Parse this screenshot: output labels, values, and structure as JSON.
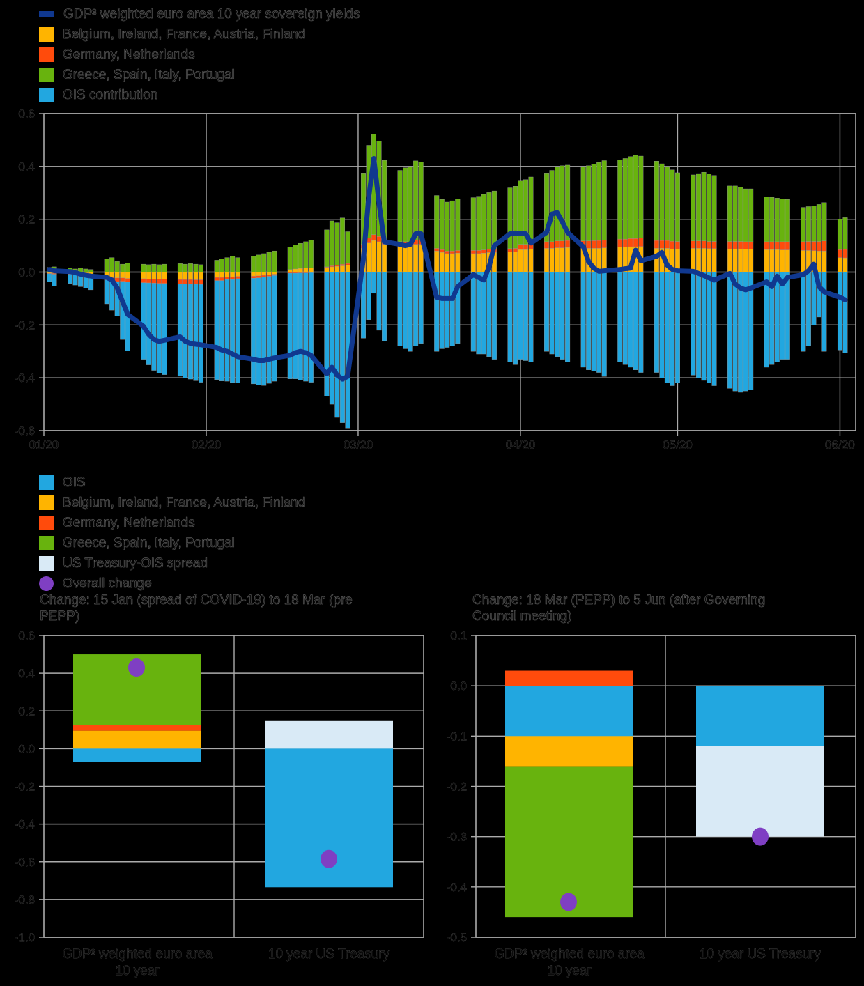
{
  "colors": {
    "background": "#000000",
    "grid": "#ababab",
    "bar_outline": "#9b9b9b",
    "navy": "#10388f",
    "ois": "#22a7e0",
    "befr": "#ffb400",
    "denl": "#ff4b0c",
    "gisp": "#68b30e",
    "ust": "#d9eaf6",
    "purple": "#7f3fc3"
  },
  "top_legend": [
    {
      "key": "navy",
      "swatch": "line",
      "label": "GDP³ weighted euro area 10 year sovereign yields"
    },
    {
      "key": "befr",
      "swatch": "square",
      "label": "Belgium, Ireland, France, Austria, Finland"
    },
    {
      "key": "denl",
      "swatch": "square",
      "label": "Germany, Netherlands"
    },
    {
      "key": "gisp",
      "swatch": "square",
      "label": "Greece, Spain, Italy, Portugal"
    },
    {
      "key": "ois",
      "swatch": "square",
      "label": "OIS contribution"
    }
  ],
  "bottom_legend": [
    {
      "key": "ois",
      "swatch": "square",
      "label": "OIS"
    },
    {
      "key": "befr",
      "swatch": "square",
      "label": "Belgium, Ireland, France, Austria, Finland"
    },
    {
      "key": "denl",
      "swatch": "square",
      "label": "Germany, Netherlands"
    },
    {
      "key": "gisp",
      "swatch": "square",
      "label": "Greece, Spain, Italy, Portugal"
    },
    {
      "key": "ust",
      "swatch": "square",
      "label": "US Treasury-OIS spread"
    },
    {
      "key": "purple",
      "swatch": "circle",
      "label": "Overall change"
    }
  ],
  "chart_data": [
    {
      "id": "top",
      "type": "bar+line",
      "stacked": true,
      "description": "Daily decomposition of changes in the GDP-weighted euro area 10 year sovereign yield, Jan-Jun 2020",
      "ylim": [
        -0.6,
        0.6
      ],
      "y_tick_values": [
        0.6,
        0.4,
        0.2,
        0.0,
        -0.2,
        -0.4,
        -0.6
      ],
      "y_tick_labels": [
        "0.6",
        "0.4",
        "0.2",
        "0.0",
        "-0.2",
        "-0.4",
        "-0.6"
      ],
      "x_ticks": [
        {
          "label": "01/20",
          "day": 0
        },
        {
          "label": "02/20",
          "day": 31
        },
        {
          "label": "03/20",
          "day": 60
        },
        {
          "label": "04/20",
          "day": 91
        },
        {
          "label": "05/20",
          "day": 121
        },
        {
          "label": "06/20",
          "day": 152
        }
      ],
      "day_range": [
        0,
        155
      ],
      "days": [
        1,
        2,
        5,
        6,
        7,
        8,
        9,
        12,
        13,
        14,
        15,
        16,
        19,
        20,
        21,
        22,
        23,
        26,
        27,
        28,
        29,
        30,
        33,
        34,
        35,
        36,
        37,
        40,
        41,
        42,
        43,
        44,
        47,
        48,
        49,
        50,
        51,
        54,
        55,
        56,
        57,
        58,
        61,
        62,
        63,
        64,
        65,
        68,
        69,
        70,
        71,
        72,
        75,
        76,
        77,
        78,
        79,
        82,
        83,
        84,
        85,
        86,
        89,
        90,
        91,
        92,
        93,
        96,
        97,
        98,
        99,
        100,
        103,
        104,
        105,
        106,
        107,
        110,
        111,
        112,
        113,
        114,
        117,
        118,
        119,
        120,
        121,
        124,
        125,
        126,
        127,
        128,
        131,
        132,
        133,
        134,
        135,
        138,
        139,
        140,
        141,
        142,
        145,
        146,
        147,
        148,
        149,
        152,
        153
      ],
      "series": [
        {
          "name": "OIS contribution",
          "key": "ois",
          "type": "bar",
          "values": [
            -0.03,
            -0.045,
            -0.035,
            -0.04,
            -0.045,
            -0.05,
            -0.055,
            -0.09,
            -0.11,
            -0.13,
            -0.22,
            -0.26,
            -0.29,
            -0.31,
            -0.33,
            -0.34,
            -0.345,
            -0.35,
            -0.355,
            -0.36,
            -0.365,
            -0.37,
            -0.375,
            -0.38,
            -0.385,
            -0.39,
            -0.395,
            -0.4,
            -0.405,
            -0.41,
            -0.405,
            -0.4,
            -0.4,
            -0.4,
            -0.405,
            -0.41,
            -0.415,
            -0.47,
            -0.5,
            -0.55,
            -0.57,
            -0.59,
            -0.25,
            -0.18,
            -0.08,
            -0.22,
            -0.26,
            -0.28,
            -0.29,
            -0.3,
            -0.28,
            -0.27,
            -0.3,
            -0.29,
            -0.285,
            -0.28,
            -0.27,
            -0.3,
            -0.31,
            -0.31,
            -0.32,
            -0.33,
            -0.34,
            -0.35,
            -0.33,
            -0.335,
            -0.34,
            -0.3,
            -0.31,
            -0.32,
            -0.33,
            -0.34,
            -0.36,
            -0.37,
            -0.375,
            -0.38,
            -0.395,
            -0.34,
            -0.35,
            -0.36,
            -0.37,
            -0.38,
            -0.38,
            -0.4,
            -0.42,
            -0.43,
            -0.42,
            -0.39,
            -0.4,
            -0.41,
            -0.42,
            -0.43,
            -0.44,
            -0.45,
            -0.455,
            -0.45,
            -0.445,
            -0.36,
            -0.35,
            -0.34,
            -0.33,
            -0.33,
            -0.3,
            -0.28,
            -0.2,
            -0.17,
            -0.3,
            -0.295,
            -0.305
          ]
        },
        {
          "name": "Belgium, Ireland, France, Austria, Finland",
          "key": "befr",
          "type": "bar",
          "values": [
            -0.004,
            -0.005,
            -0.005,
            -0.006,
            -0.006,
            -0.007,
            -0.008,
            -0.018,
            -0.02,
            -0.022,
            -0.022,
            -0.024,
            -0.025,
            -0.026,
            -0.026,
            -0.027,
            -0.027,
            -0.028,
            -0.028,
            -0.028,
            -0.029,
            -0.029,
            -0.02,
            -0.02,
            -0.018,
            -0.018,
            -0.016,
            -0.015,
            -0.014,
            -0.012,
            -0.01,
            -0.008,
            0.01,
            0.012,
            0.014,
            0.015,
            0.016,
            0.018,
            0.02,
            0.022,
            0.024,
            0.026,
            0.09,
            0.11,
            0.12,
            0.115,
            0.105,
            0.1,
            0.1,
            0.1,
            0.105,
            0.105,
            0.08,
            0.075,
            0.07,
            0.07,
            0.072,
            0.07,
            0.07,
            0.072,
            0.074,
            0.074,
            0.076,
            0.076,
            0.085,
            0.085,
            0.088,
            0.09,
            0.09,
            0.092,
            0.092,
            0.093,
            0.09,
            0.09,
            0.09,
            0.09,
            0.092,
            0.095,
            0.095,
            0.096,
            0.096,
            0.097,
            0.09,
            0.09,
            0.09,
            0.088,
            0.088,
            0.09,
            0.09,
            0.09,
            0.089,
            0.089,
            0.088,
            0.088,
            0.088,
            0.087,
            0.087,
            0.085,
            0.085,
            0.085,
            0.084,
            0.084,
            0.082,
            0.082,
            0.081,
            0.08,
            0.08,
            0.055,
            0.054
          ]
        },
        {
          "name": "Germany, Netherlands",
          "key": "denl",
          "type": "bar",
          "values": [
            -0.002,
            -0.003,
            -0.003,
            -0.003,
            -0.004,
            -0.004,
            -0.004,
            -0.012,
            -0.014,
            -0.014,
            -0.013,
            -0.014,
            -0.015,
            -0.015,
            -0.016,
            -0.016,
            -0.016,
            -0.016,
            -0.017,
            -0.017,
            -0.017,
            -0.018,
            -0.012,
            -0.012,
            -0.01,
            -0.01,
            -0.009,
            -0.008,
            -0.008,
            -0.007,
            -0.006,
            -0.005,
            -0.004,
            -0.004,
            -0.003,
            -0.003,
            -0.002,
            0.002,
            0.004,
            0.005,
            0.006,
            0.007,
            0.015,
            0.02,
            0.022,
            0.02,
            0.018,
            0.015,
            0.015,
            0.014,
            0.016,
            0.016,
            0.01,
            0.01,
            0.01,
            0.01,
            0.01,
            0.012,
            0.012,
            0.012,
            0.012,
            0.013,
            0.013,
            0.014,
            0.02,
            0.02,
            0.022,
            0.025,
            0.025,
            0.026,
            0.026,
            0.027,
            0.028,
            0.028,
            0.029,
            0.03,
            0.03,
            0.03,
            0.03,
            0.031,
            0.031,
            0.032,
            0.03,
            0.03,
            0.03,
            0.029,
            0.028,
            0.028,
            0.028,
            0.028,
            0.027,
            0.027,
            0.028,
            0.028,
            0.028,
            0.028,
            0.028,
            0.03,
            0.03,
            0.03,
            0.031,
            0.031,
            0.033,
            0.034,
            0.035,
            0.036,
            0.038,
            0.03,
            0.032
          ]
        },
        {
          "name": "Greece, Spain, Italy, Portugal",
          "key": "gisp",
          "type": "bar",
          "values": [
            0.018,
            0.02,
            0.015,
            0.012,
            0.015,
            0.012,
            0.01,
            0.05,
            0.055,
            0.04,
            0.03,
            0.035,
            0.03,
            0.028,
            0.03,
            0.028,
            0.03,
            0.032,
            0.03,
            0.032,
            0.03,
            0.028,
            0.045,
            0.05,
            0.055,
            0.06,
            0.055,
            0.06,
            0.065,
            0.07,
            0.075,
            0.08,
            0.085,
            0.09,
            0.095,
            0.1,
            0.105,
            0.14,
            0.17,
            0.16,
            0.175,
            0.12,
            0.27,
            0.35,
            0.38,
            0.36,
            0.3,
            0.27,
            0.28,
            0.285,
            0.3,
            0.295,
            0.2,
            0.19,
            0.185,
            0.19,
            0.195,
            0.2,
            0.205,
            0.21,
            0.215,
            0.22,
            0.23,
            0.235,
            0.24,
            0.245,
            0.25,
            0.26,
            0.27,
            0.28,
            0.285,
            0.285,
            0.28,
            0.285,
            0.29,
            0.295,
            0.3,
            0.3,
            0.305,
            0.31,
            0.315,
            0.31,
            0.3,
            0.29,
            0.28,
            0.27,
            0.26,
            0.25,
            0.255,
            0.26,
            0.255,
            0.25,
            0.21,
            0.21,
            0.205,
            0.2,
            0.2,
            0.17,
            0.168,
            0.165,
            0.162,
            0.16,
            0.13,
            0.132,
            0.135,
            0.14,
            0.145,
            0.115,
            0.12
          ]
        },
        {
          "name": "GDP³ weighted euro area 10 year sovereign yields",
          "key": "navy",
          "type": "line",
          "values": [
            0.01,
            0.005,
            0.002,
            -0.002,
            -0.008,
            -0.012,
            -0.015,
            -0.02,
            -0.03,
            -0.06,
            -0.11,
            -0.16,
            -0.205,
            -0.235,
            -0.255,
            -0.262,
            -0.258,
            -0.245,
            -0.262,
            -0.27,
            -0.273,
            -0.275,
            -0.285,
            -0.295,
            -0.3,
            -0.31,
            -0.32,
            -0.33,
            -0.335,
            -0.335,
            -0.33,
            -0.325,
            -0.315,
            -0.305,
            -0.3,
            -0.305,
            -0.315,
            -0.385,
            -0.36,
            -0.39,
            -0.405,
            -0.395,
            0.05,
            0.28,
            0.43,
            0.26,
            0.115,
            0.105,
            0.1,
            0.105,
            0.145,
            0.145,
            -0.095,
            -0.1,
            -0.1,
            -0.1,
            -0.055,
            -0.01,
            -0.02,
            -0.03,
            0.02,
            0.1,
            0.145,
            0.148,
            0.146,
            0.145,
            0.11,
            0.15,
            0.22,
            0.225,
            0.19,
            0.15,
            0.096,
            0.04,
            0.015,
            0.003,
            0.005,
            0.01,
            0.013,
            0.015,
            0.083,
            0.043,
            0.06,
            0.075,
            0.027,
            0.01,
            0.005,
            0.003,
            -0.005,
            -0.013,
            -0.022,
            -0.03,
            -0.005,
            -0.045,
            -0.06,
            -0.067,
            -0.06,
            -0.037,
            -0.055,
            -0.015,
            -0.045,
            -0.02,
            -0.01,
            0.005,
            0.03,
            -0.055,
            -0.075,
            -0.095,
            -0.105
          ]
        }
      ]
    },
    {
      "id": "bottom_left",
      "type": "bar",
      "stacked": true,
      "title_lines": [
        "Change: 15 Jan (spread of COVID-19) to 18 Mar (pre",
        "PEPP)"
      ],
      "ylim": [
        -1.0,
        0.6
      ],
      "y_tick_values": [
        0.6,
        0.4,
        0.2,
        0.0,
        -0.2,
        -0.4,
        -0.6,
        -0.8,
        -1.0
      ],
      "y_tick_labels": [
        "0.6",
        "0.4",
        "0.2",
        "0.0",
        "-0.2",
        "-0.4",
        "-0.6",
        "-0.8",
        "-1.0"
      ],
      "categories": [
        [
          "GDP³ weighted euro area",
          "10 year"
        ],
        [
          "10 year US Treasury"
        ]
      ],
      "bars": [
        {
          "segments": [
            {
              "key": "gisp",
              "from": 0.125,
              "to": 0.5
            },
            {
              "key": "denl",
              "from": 0.095,
              "to": 0.125
            },
            {
              "key": "befr",
              "from": 0.0,
              "to": 0.095
            },
            {
              "key": "ois",
              "from": -0.07,
              "to": 0.0
            }
          ],
          "overall_change": 0.43
        },
        {
          "segments": [
            {
              "key": "ust",
              "from": 0.0,
              "to": 0.15
            },
            {
              "key": "ois",
              "from": -0.735,
              "to": 0.0
            }
          ],
          "overall_change": -0.585
        }
      ]
    },
    {
      "id": "bottom_right",
      "type": "bar",
      "stacked": true,
      "title_lines": [
        "Change: 18 Mar (PEPP) to 5 Jun (after Governing",
        "Council meeting)"
      ],
      "ylim": [
        -0.5,
        0.1
      ],
      "y_tick_values": [
        0.1,
        0.0,
        -0.1,
        -0.2,
        -0.3,
        -0.4,
        -0.5
      ],
      "y_tick_labels": [
        "0.1",
        "0.0",
        "-0.1",
        "-0.2",
        "-0.3",
        "-0.4",
        "-0.5"
      ],
      "categories": [
        [
          "GDP³ weighted euro area",
          "10 year"
        ],
        [
          "10 year US Treasury"
        ]
      ],
      "bars": [
        {
          "segments": [
            {
              "key": "denl",
              "from": 0.0,
              "to": 0.03
            },
            {
              "key": "ois",
              "from": -0.1,
              "to": 0.0
            },
            {
              "key": "befr",
              "from": -0.16,
              "to": -0.1
            },
            {
              "key": "gisp",
              "from": -0.46,
              "to": -0.16
            }
          ],
          "overall_change": -0.43
        },
        {
          "segments": [
            {
              "key": "ois",
              "from": -0.12,
              "to": 0.0
            },
            {
              "key": "ust",
              "from": -0.3,
              "to": -0.12
            }
          ],
          "overall_change": -0.3
        }
      ]
    }
  ]
}
